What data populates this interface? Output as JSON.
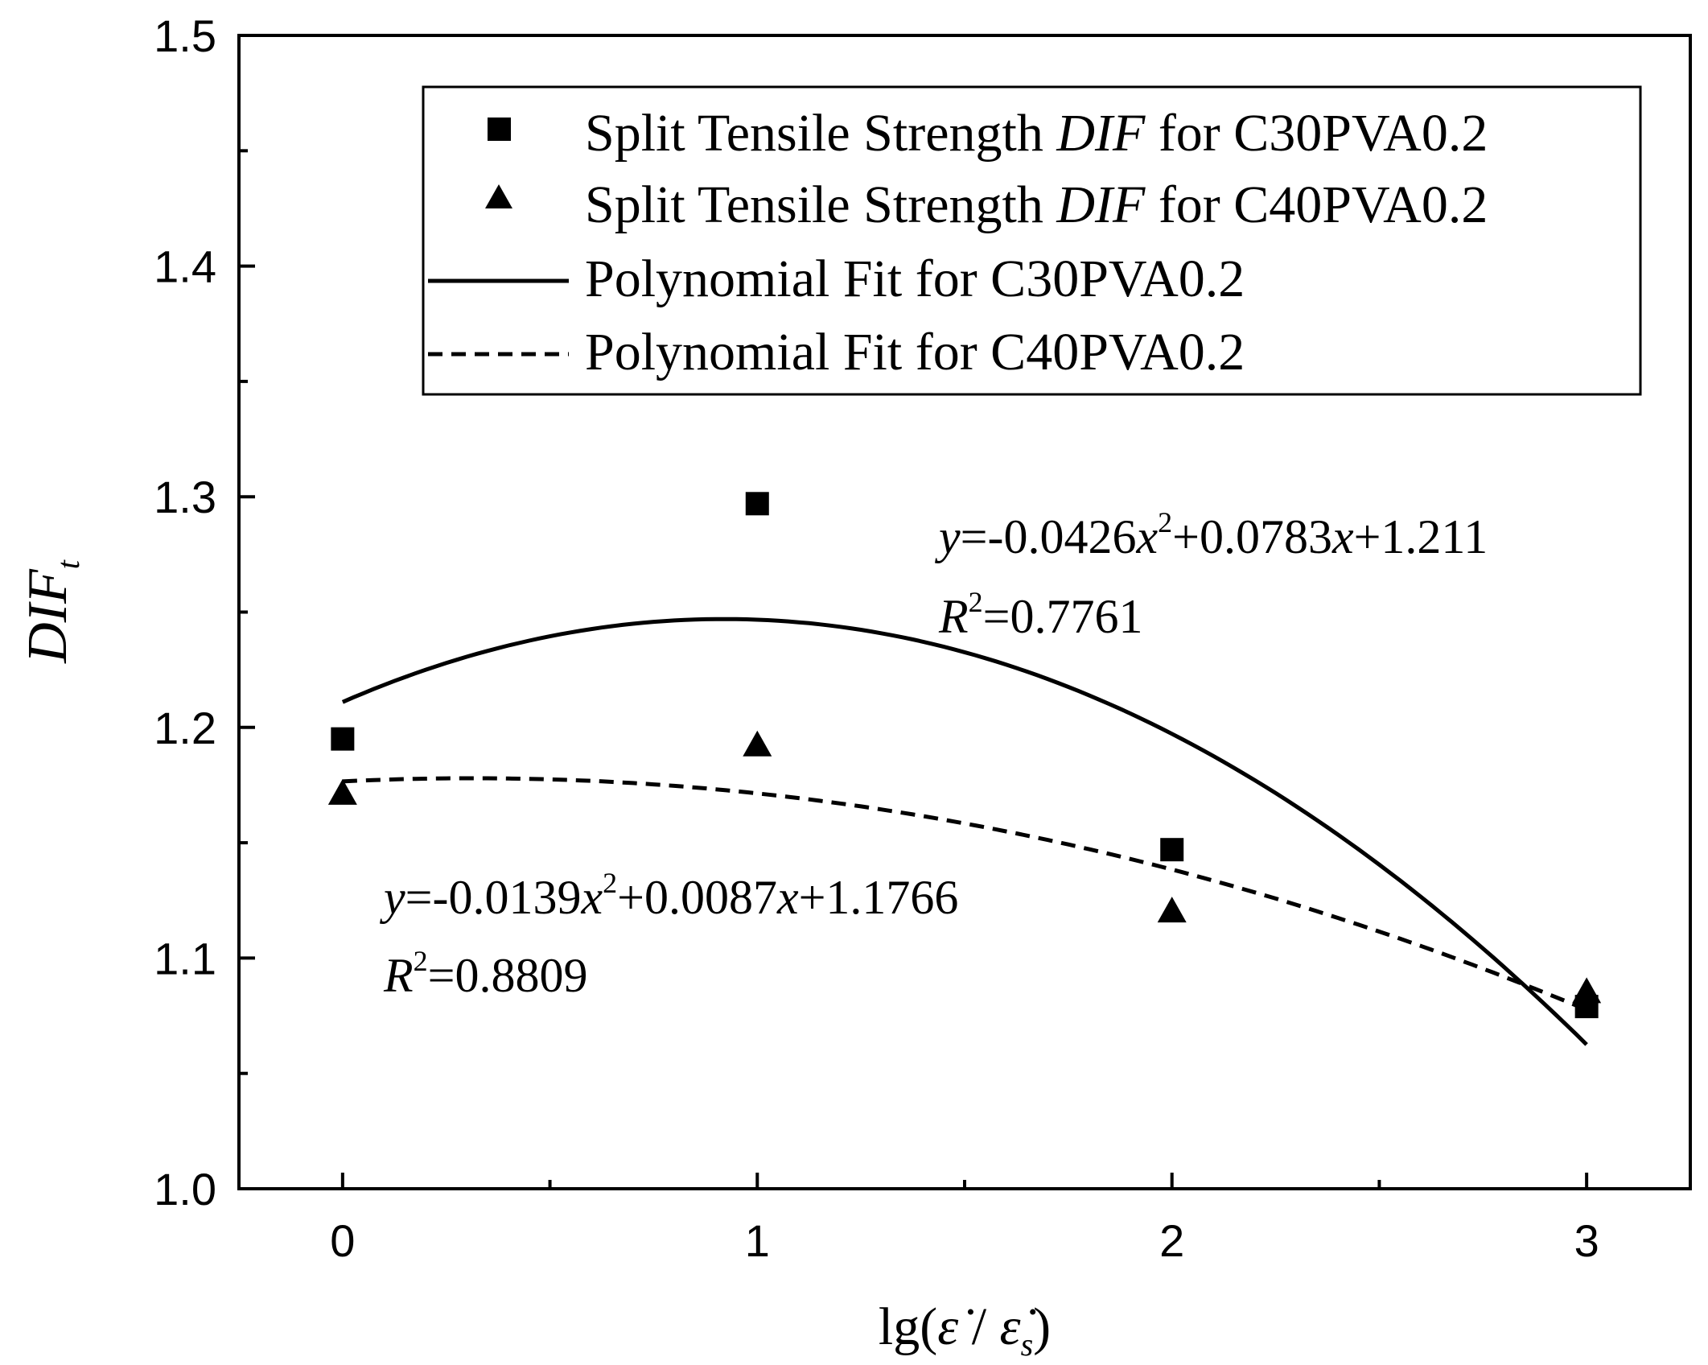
{
  "chart_data": {
    "type": "scatter",
    "x_axis": {
      "label_prefix": "lg(",
      "label_num": "ε̇",
      "label_sep": " / ",
      "label_den": "ε̇",
      "label_den_sub": "s",
      "label_suffix": ")",
      "range": [
        -0.25,
        3.25
      ],
      "ticks": [
        0,
        1,
        2,
        3
      ],
      "tick_labels": [
        "0",
        "1",
        "2",
        "3"
      ],
      "minor_ticks": [
        0.5,
        1.5,
        2.5
      ]
    },
    "y_axis": {
      "label_main": "DIF",
      "label_sub": "t",
      "range": [
        1.0,
        1.5
      ],
      "ticks": [
        1.0,
        1.1,
        1.2,
        1.3,
        1.4,
        1.5
      ],
      "tick_labels": [
        "1.0",
        "1.1",
        "1.2",
        "1.3",
        "1.4",
        "1.5"
      ],
      "minor_ticks": [
        1.05,
        1.15,
        1.25,
        1.35,
        1.45
      ]
    },
    "series": [
      {
        "name": "Split Tensile Strength DIF for C30PVA0.2",
        "marker": "square",
        "x": [
          0,
          1,
          2,
          3
        ],
        "y": [
          1.195,
          1.297,
          1.147,
          1.079
        ]
      },
      {
        "name": "Split Tensile Strength DIF for C40PVA0.2",
        "marker": "triangle",
        "x": [
          0,
          1,
          2,
          3
        ],
        "y": [
          1.171,
          1.192,
          1.12,
          1.085
        ]
      }
    ],
    "fits": [
      {
        "name": "Polynomial Fit for C30PVA0.2",
        "style": "solid",
        "coefficients": {
          "a": -0.0426,
          "b": 0.0783,
          "c": 1.211
        },
        "x_range": [
          0,
          3
        ]
      },
      {
        "name": "Polynomial Fit for C40PVA0.2",
        "style": "dashed",
        "coefficients": {
          "a": -0.0139,
          "b": 0.0087,
          "c": 1.1766
        },
        "x_range": [
          0,
          3
        ]
      }
    ],
    "legend": {
      "placement": "top-right",
      "entries": [
        {
          "prefix": "Split Tensile Strength ",
          "italic": "DIF",
          "suffix": " for C30PVA0.2",
          "symbol": "square"
        },
        {
          "prefix": "Split Tensile Strength ",
          "italic": "DIF",
          "suffix": " for C40PVA0.2",
          "symbol": "triangle"
        },
        {
          "prefix": "Polynomial Fit for C30PVA0.2",
          "italic": "",
          "suffix": "",
          "symbol": "solid-line"
        },
        {
          "prefix": "Polynomial Fit for C40PVA0.2",
          "italic": "",
          "suffix": "",
          "symbol": "dashed-line"
        }
      ]
    },
    "annotations": [
      {
        "y_var": "y",
        "eq_a": "=-0.0426",
        "x_var1": "x",
        "pow": "2",
        "eq_b": "+0.0783",
        "x_var2": "x",
        "eq_c": "+1.211",
        "r_var": "R",
        "r_pow": "2",
        "r_val": "=0.7761"
      },
      {
        "y_var": "y",
        "eq_a": "=-0.0139",
        "x_var1": "x",
        "pow": "2",
        "eq_b": "+0.0087",
        "x_var2": "x",
        "eq_c": "+1.1766",
        "r_var": "R",
        "r_pow": "2",
        "r_val": "=0.8809"
      }
    ],
    "grid": false
  }
}
